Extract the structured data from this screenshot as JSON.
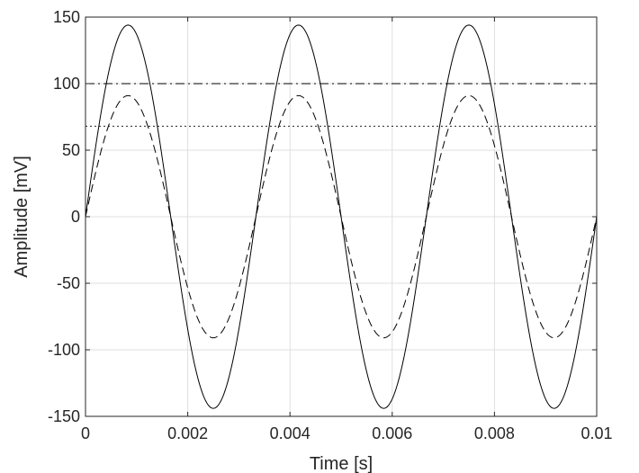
{
  "chart_data": {
    "type": "line",
    "xlabel": "Time [s]",
    "ylabel": "Amplitude [mV]",
    "xlim": [
      0,
      0.01
    ],
    "ylim": [
      -150,
      150
    ],
    "xticks": [
      0,
      0.002,
      0.004,
      0.006,
      0.008,
      0.01
    ],
    "xtick_labels": [
      "0",
      "0.002",
      "0.004",
      "0.006",
      "0.008",
      "0.01"
    ],
    "yticks": [
      -150,
      -100,
      -50,
      0,
      50,
      100,
      150
    ],
    "ytick_labels": [
      "-150",
      "-100",
      "-50",
      "0",
      "50",
      "100",
      "150"
    ],
    "grid": true,
    "series": [
      {
        "style": "solid",
        "color": "#000000",
        "function": "sine",
        "amplitude": 144,
        "frequency": 300,
        "x_range": [
          0,
          0.01
        ]
      },
      {
        "style": "dashed",
        "color": "#000000",
        "function": "sine",
        "amplitude": 91,
        "frequency": 300,
        "x_range": [
          0,
          0.01
        ]
      },
      {
        "style": "dashdot",
        "color": "#000000",
        "function": "constant",
        "value": 100
      },
      {
        "style": "dotted",
        "color": "#000000",
        "function": "constant",
        "value": 68
      }
    ]
  }
}
